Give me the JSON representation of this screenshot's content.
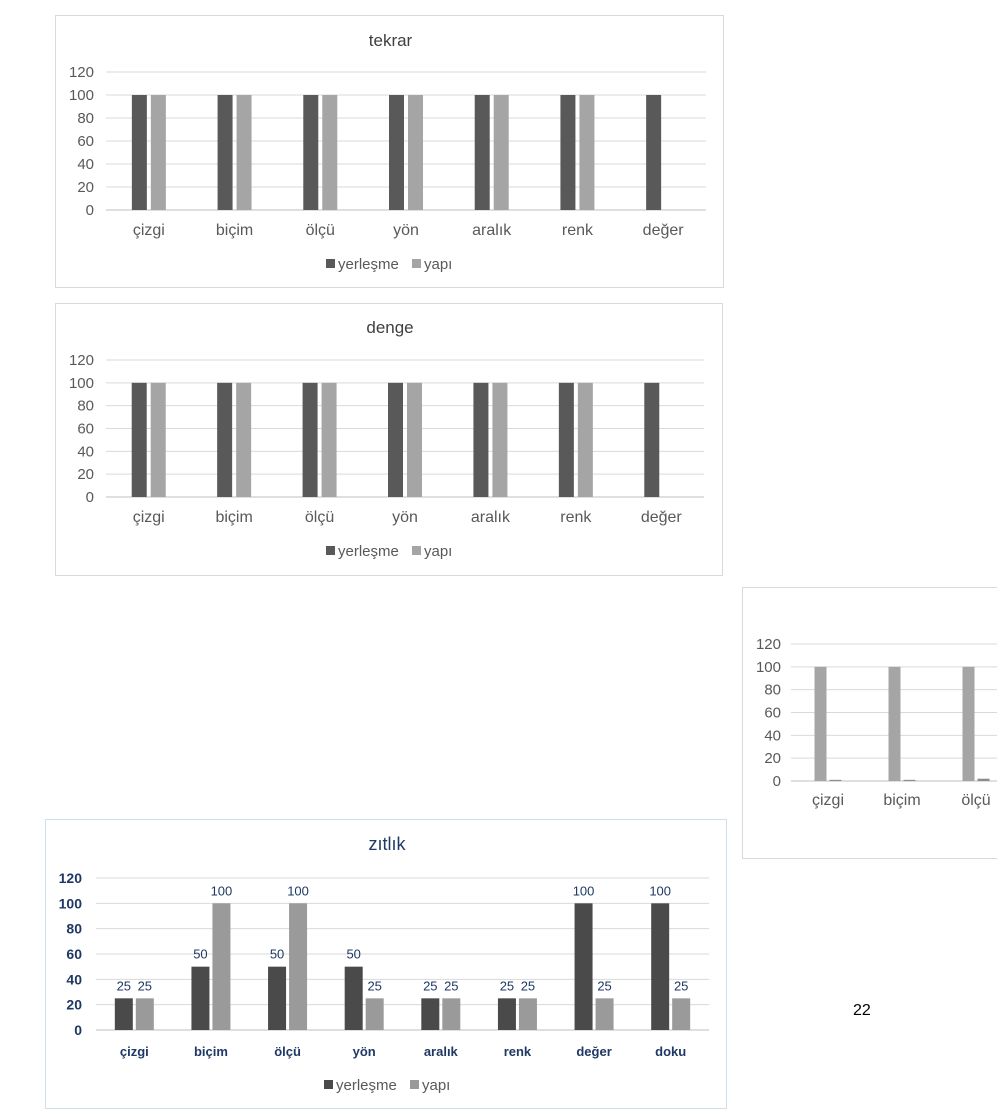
{
  "page": {
    "number": "22"
  },
  "chart_data": [
    {
      "id": "tekrar",
      "type": "bar",
      "title": "tekrar",
      "categories": [
        "çizgi",
        "biçim",
        "ölçü",
        "yön",
        "aralık",
        "renk",
        "değer"
      ],
      "series": [
        {
          "name": "yerleşme",
          "values": [
            100,
            100,
            100,
            100,
            100,
            100,
            100
          ],
          "color": "#595959"
        },
        {
          "name": "yapı",
          "values": [
            100,
            100,
            100,
            100,
            100,
            100,
            0
          ],
          "color": "#a5a5a5"
        }
      ],
      "ylim": [
        0,
        120
      ],
      "yticks": [
        "0",
        "20",
        "40",
        "60",
        "80",
        "100",
        "120"
      ],
      "grid": true,
      "legend": "bottom",
      "data_labels": false
    },
    {
      "id": "denge",
      "type": "bar",
      "title": "denge",
      "categories": [
        "çizgi",
        "biçim",
        "ölçü",
        "yön",
        "aralık",
        "renk",
        "değer"
      ],
      "series": [
        {
          "name": "yerleşme",
          "values": [
            100,
            100,
            100,
            100,
            100,
            100,
            100
          ],
          "color": "#595959"
        },
        {
          "name": "yapı",
          "values": [
            100,
            100,
            100,
            100,
            100,
            100,
            0
          ],
          "color": "#a5a5a5"
        }
      ],
      "ylim": [
        0,
        120
      ],
      "yticks": [
        "0",
        "20",
        "40",
        "60",
        "80",
        "100",
        "120"
      ],
      "grid": true,
      "legend": "bottom",
      "data_labels": false
    },
    {
      "id": "partial",
      "type": "bar",
      "title": "",
      "categories": [
        "çizgi",
        "biçim",
        "ölçü"
      ],
      "series": [
        {
          "name": "",
          "values": [
            100,
            100,
            100
          ],
          "color": "#a5a5a5"
        },
        {
          "name": "",
          "values": [
            1,
            1,
            2
          ],
          "color": "#8c8c8c"
        }
      ],
      "ylim": [
        0,
        120
      ],
      "yticks": [
        "0",
        "20",
        "40",
        "60",
        "80",
        "100",
        "120"
      ],
      "grid": true,
      "legend": "none",
      "data_labels": false,
      "cropped_right": true
    },
    {
      "id": "zitlik",
      "type": "bar",
      "title": "zıtlık",
      "categories": [
        "çizgi",
        "biçim",
        "ölçü",
        "yön",
        "aralık",
        "renk",
        "değer",
        "doku"
      ],
      "series": [
        {
          "name": "yerleşme",
          "values": [
            25,
            50,
            50,
            50,
            25,
            25,
            100,
            100
          ],
          "color": "#4a4a4a"
        },
        {
          "name": "yapı",
          "values": [
            25,
            100,
            100,
            25,
            25,
            25,
            25,
            25
          ],
          "color": "#9a9a9a"
        }
      ],
      "ylim": [
        0,
        120
      ],
      "yticks": [
        "0",
        "20",
        "40",
        "60",
        "80",
        "100",
        "120"
      ],
      "grid": true,
      "legend": "bottom",
      "data_labels": true,
      "label_color": "#1f3864"
    }
  ]
}
